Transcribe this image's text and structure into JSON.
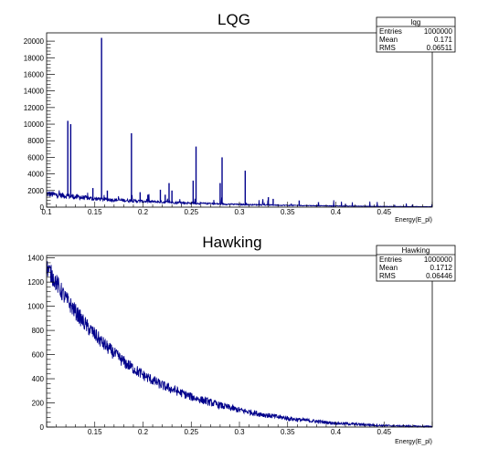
{
  "chart_data": [
    {
      "type": "histogram",
      "title": "LQG",
      "xlabel": "Energy(E_pl)",
      "ylabel": "",
      "xlim": [
        0.1,
        0.5
      ],
      "ylim": [
        0,
        21000
      ],
      "xticks": [
        0.1,
        0.15,
        0.2,
        0.25,
        0.3,
        0.35,
        0.4,
        0.45
      ],
      "xtick_labels": [
        "0.1",
        "0.15",
        "0.2",
        "0.25",
        "0.3",
        "0.35",
        "0.4",
        "0.45"
      ],
      "yticks": [
        0,
        2000,
        4000,
        6000,
        8000,
        10000,
        12000,
        14000,
        16000,
        18000,
        20000
      ],
      "ytick_labels": [
        "0",
        "2000",
        "4000",
        "6000",
        "8000",
        "10000",
        "12000",
        "14000",
        "16000",
        "18000",
        "20000"
      ],
      "series_color": "#00008b",
      "baseline": {
        "x": [
          0.1,
          0.15,
          0.2,
          0.25,
          0.3,
          0.35,
          0.4,
          0.45,
          0.5
        ],
        "y": [
          1600,
          1000,
          700,
          480,
          320,
          220,
          140,
          90,
          50
        ]
      },
      "peaks": {
        "x": [
          0.122,
          0.125,
          0.148,
          0.157,
          0.163,
          0.188,
          0.197,
          0.205,
          0.218,
          0.223,
          0.227,
          0.23,
          0.252,
          0.255,
          0.28,
          0.282,
          0.306,
          0.33,
          0.335,
          0.362,
          0.382,
          0.41
        ],
        "y": [
          10400,
          10000,
          2300,
          20400,
          2000,
          8900,
          1800,
          1500,
          2100,
          1500,
          2900,
          2000,
          3200,
          7300,
          2900,
          6000,
          4400,
          1200,
          1000,
          800,
          600,
          400
        ]
      },
      "stats": {
        "name": "lqg",
        "entries_label": "Entries",
        "entries": "1000000",
        "mean_label": "Mean",
        "mean": "0.171",
        "rms_label": "RMS",
        "rms": "0.06511"
      }
    },
    {
      "type": "histogram",
      "title": "Hawking",
      "xlabel": "Energy(E_pl)",
      "ylabel": "",
      "xlim": [
        0.1,
        0.5
      ],
      "ylim": [
        0,
        1420
      ],
      "xticks": [
        0.15,
        0.2,
        0.25,
        0.3,
        0.35,
        0.4,
        0.45
      ],
      "xtick_labels": [
        "0.15",
        "0.2",
        "0.25",
        "0.3",
        "0.35",
        "0.4",
        "0.45"
      ],
      "yticks": [
        0,
        200,
        400,
        600,
        800,
        1000,
        1200,
        1400
      ],
      "ytick_labels": [
        "0",
        "200",
        "400",
        "600",
        "800",
        "1000",
        "1200",
        "1400"
      ],
      "series_color": "#00008b",
      "curve": {
        "x": [
          0.1,
          0.12,
          0.14,
          0.16,
          0.18,
          0.2,
          0.22,
          0.25,
          0.28,
          0.3,
          0.33,
          0.36,
          0.4,
          0.45,
          0.5
        ],
        "y": [
          1330,
          1060,
          850,
          680,
          540,
          430,
          345,
          250,
          180,
          140,
          95,
          62,
          32,
          12,
          4
        ]
      },
      "stats": {
        "name": "Hawking",
        "entries_label": "Entries",
        "entries": "1000000",
        "mean_label": "Mean",
        "mean": "0.1712",
        "rms_label": "RMS",
        "rms": "0.06446"
      }
    }
  ]
}
